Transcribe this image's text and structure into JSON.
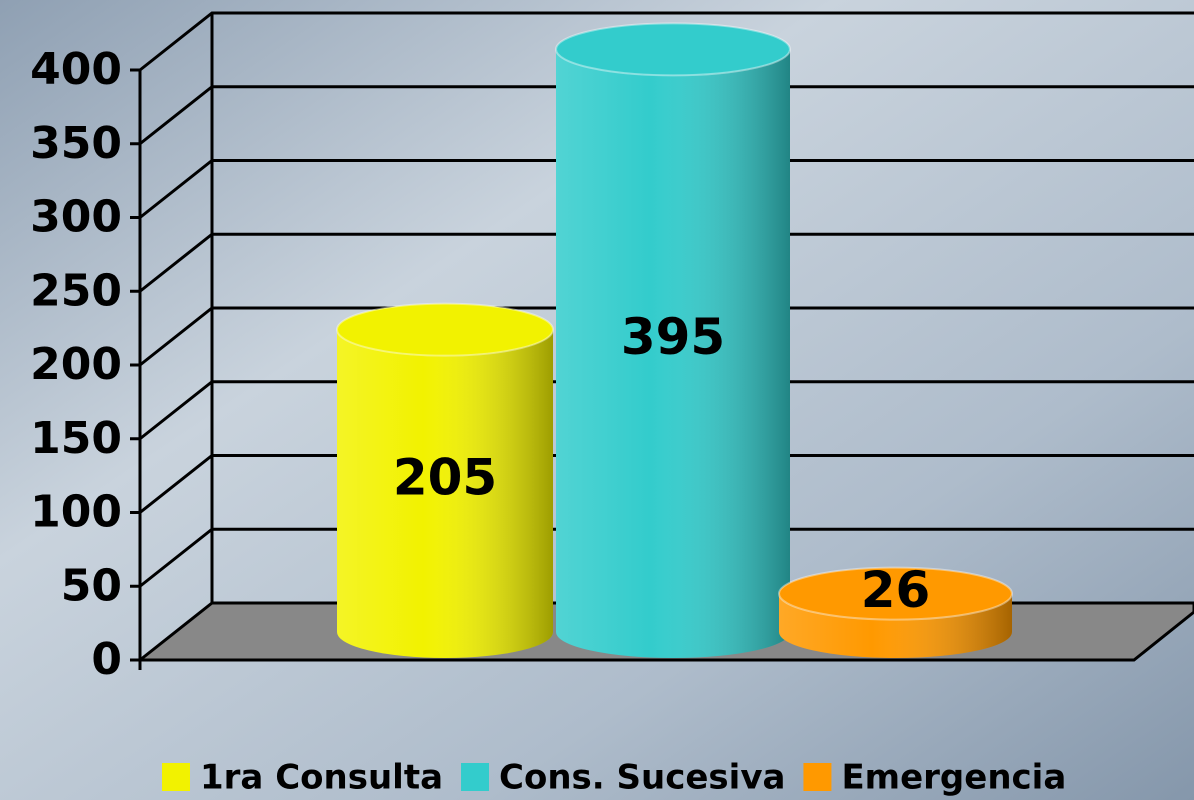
{
  "chart_data": {
    "type": "cylinder",
    "categories": [
      null
    ],
    "series": [
      {
        "name": "1ra Consulta",
        "color": "#f2f200",
        "values": [
          205
        ]
      },
      {
        "name": "Cons. Sucesiva",
        "color": "#33cccc",
        "values": [
          395
        ]
      },
      {
        "name": "Emergencia",
        "color": "#ff9900",
        "values": [
          26
        ]
      }
    ],
    "ylim": [
      0,
      400
    ],
    "yticks": [
      0,
      50,
      100,
      150,
      200,
      250,
      300,
      350,
      400
    ],
    "grid": true,
    "legend": "bottom"
  }
}
